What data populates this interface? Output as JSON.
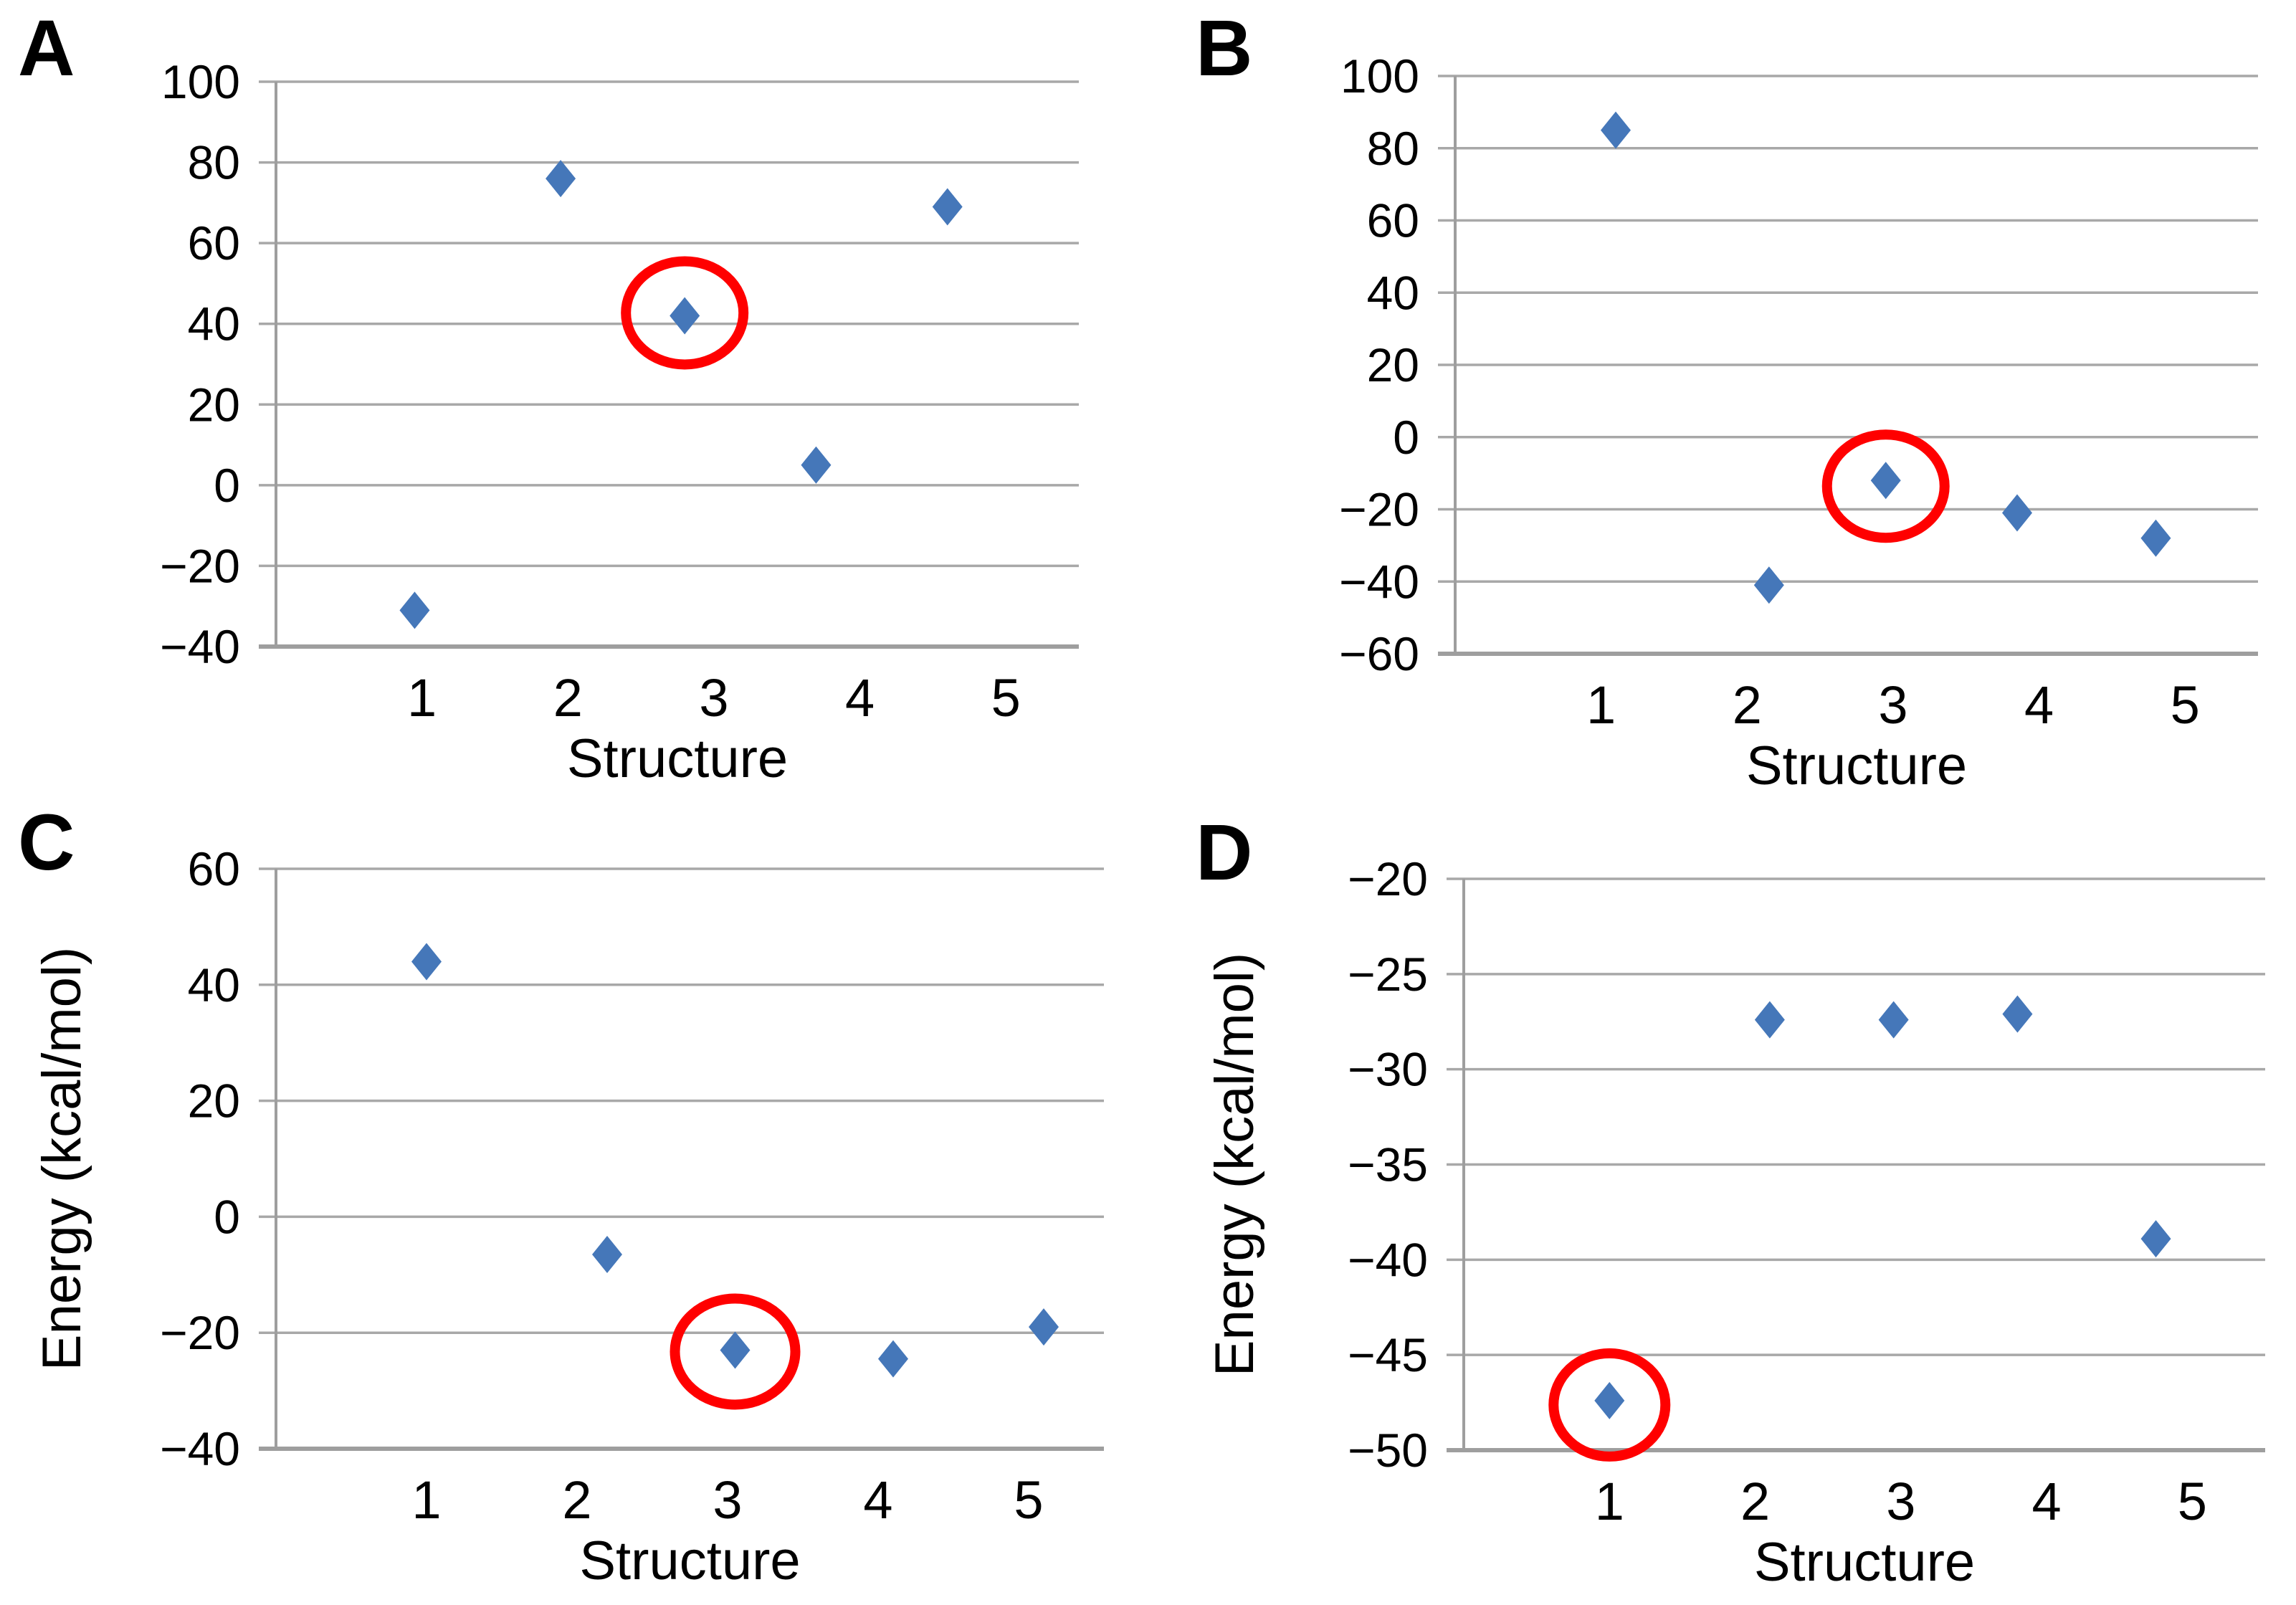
{
  "figure": {
    "background": "#ffffff",
    "styles": {
      "marker_color": "#4577b9",
      "highlight_color": "#ff0000",
      "gridline_color": "#a8a8a8",
      "axis_color": "#9e9e9e",
      "text_color": "#000000"
    }
  },
  "chart_data": [
    {
      "type": "scatter",
      "panel_label": "A",
      "title": "",
      "xlabel": "Structure",
      "ylabel": "",
      "marker": "blue-diamond",
      "grid": true,
      "xlim": [
        0,
        5.5
      ],
      "ylim": [
        -40,
        100
      ],
      "x_ticks": [
        1,
        2,
        3,
        4,
        5
      ],
      "y_ticks": [
        100,
        80,
        60,
        40,
        20,
        0,
        -20,
        -40
      ],
      "points": [
        {
          "x": 0.95,
          "y": -31
        },
        {
          "x": 1.95,
          "y": 76
        },
        {
          "x": 2.8,
          "y": 42
        },
        {
          "x": 3.7,
          "y": 5
        },
        {
          "x": 4.6,
          "y": 69
        }
      ],
      "highlighted_point": 2,
      "annotation": "red-circle around structure-3 point (42 kcal/mol)"
    },
    {
      "type": "scatter",
      "panel_label": "B",
      "title": "",
      "xlabel": "Structure",
      "ylabel": "",
      "marker": "blue-diamond",
      "grid": true,
      "xlim": [
        0,
        5.5
      ],
      "ylim": [
        -60,
        100
      ],
      "x_ticks": [
        1,
        2,
        3,
        4,
        5
      ],
      "y_ticks": [
        100,
        80,
        60,
        40,
        20,
        0,
        -20,
        -40,
        -60
      ],
      "points": [
        {
          "x": 1.1,
          "y": 85
        },
        {
          "x": 2.15,
          "y": -41
        },
        {
          "x": 2.95,
          "y": -12
        },
        {
          "x": 3.85,
          "y": -21
        },
        {
          "x": 4.8,
          "y": -28
        }
      ],
      "highlighted_point": 2,
      "annotation": "red-circle around structure-3 point (-12 kcal/mol)"
    },
    {
      "type": "scatter",
      "panel_label": "C",
      "title": "",
      "xlabel": "Structure",
      "ylabel": "Energy  (kcal/mol)",
      "marker": "blue-diamond",
      "grid": true,
      "xlim": [
        0,
        5.5
      ],
      "ylim": [
        -40,
        60
      ],
      "x_ticks": [
        1,
        2,
        3,
        4,
        5
      ],
      "y_ticks": [
        60,
        40,
        20,
        0,
        -20,
        -40
      ],
      "points": [
        {
          "x": 1.0,
          "y": 44
        },
        {
          "x": 2.2,
          "y": -6.5
        },
        {
          "x": 3.05,
          "y": -23
        },
        {
          "x": 4.1,
          "y": -24.5
        },
        {
          "x": 5.1,
          "y": -19
        }
      ],
      "highlighted_point": 2,
      "annotation": "red-circle around structure-3 point (-23 kcal/mol)"
    },
    {
      "type": "scatter",
      "panel_label": "D",
      "title": "",
      "xlabel": "Structure",
      "ylabel": "Energy  (kcal/mol)",
      "marker": "blue-diamond",
      "grid": true,
      "xlim": [
        0,
        5.5
      ],
      "ylim": [
        -50,
        -20
      ],
      "x_ticks": [
        1,
        2,
        3,
        4,
        5
      ],
      "y_ticks": [
        -20,
        -25,
        -30,
        -35,
        -40,
        -45,
        -50
      ],
      "points": [
        {
          "x": 1.0,
          "y": -47.4
        },
        {
          "x": 2.1,
          "y": -27.4
        },
        {
          "x": 2.95,
          "y": -27.4
        },
        {
          "x": 3.8,
          "y": -27.1
        },
        {
          "x": 4.75,
          "y": -38.9
        }
      ],
      "highlighted_point": 0,
      "annotation": "red-circle around structure-1 point (-47.4 kcal/mol)"
    }
  ]
}
